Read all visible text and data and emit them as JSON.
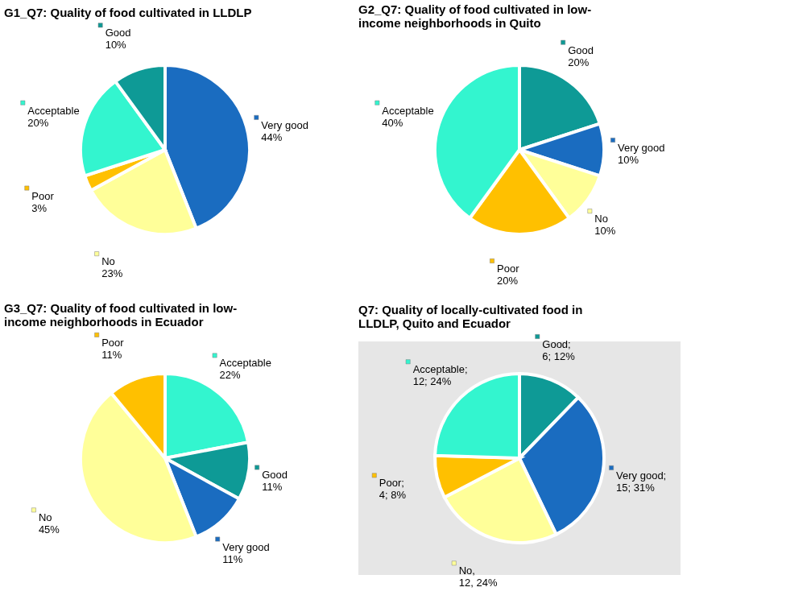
{
  "chart_data": [
    {
      "type": "pie",
      "title": "G1_Q7: Quality of food cultivated in LLDLP",
      "categories": [
        "Very good",
        "No",
        "Poor",
        "Acceptable",
        "Good"
      ],
      "values": [
        44,
        23,
        3,
        20,
        10
      ],
      "value_labels": [
        "44%",
        "23%",
        "3%",
        "20%",
        "10%"
      ],
      "legend": "right",
      "colors": [
        "#1a6cc0",
        "#ffff99",
        "#ffc000",
        "#33f5cf",
        "#0e9a96"
      ]
    },
    {
      "type": "pie",
      "title": "G2_Q7: Quality of food cultivated in low-income neighborhoods in Quito",
      "categories": [
        "Good",
        "Very good",
        "No",
        "Poor",
        "Acceptable"
      ],
      "values": [
        20,
        10,
        10,
        20,
        40
      ],
      "value_labels": [
        "20%",
        "10%",
        "10%",
        "20%",
        "40%"
      ],
      "legend": "right",
      "colors": [
        "#0e9a96",
        "#1a6cc0",
        "#ffff99",
        "#ffc000",
        "#33f5cf"
      ]
    },
    {
      "type": "pie",
      "title": "G3_Q7: Quality of food cultivated in low-income neighborhoods in Ecuador",
      "categories": [
        "Acceptable",
        "Good",
        "Very good",
        "No",
        "Poor"
      ],
      "values": [
        22,
        11,
        11,
        45,
        11
      ],
      "value_labels": [
        "22%",
        "11%",
        "11%",
        "45%",
        "11%"
      ],
      "legend": "right",
      "colors": [
        "#33f5cf",
        "#0e9a96",
        "#1a6cc0",
        "#ffff99",
        "#ffc000"
      ]
    },
    {
      "type": "pie",
      "title": "Q7: Quality of locally-cultivated food in LLDLP, Quito and Ecuador",
      "categories": [
        "Good",
        "Very good",
        "No",
        "Poor",
        "Acceptable"
      ],
      "values": [
        6,
        15,
        12,
        4,
        12
      ],
      "value_labels": [
        "; 6; 12%",
        "; 15; 31%",
        ", 12, 24%",
        "; 4; 8%",
        "; 12; 24%"
      ],
      "legend": "right",
      "colors": [
        "#0e9a96",
        "#1a6cc0",
        "#ffff99",
        "#ffc000",
        "#33f5cf"
      ]
    }
  ]
}
